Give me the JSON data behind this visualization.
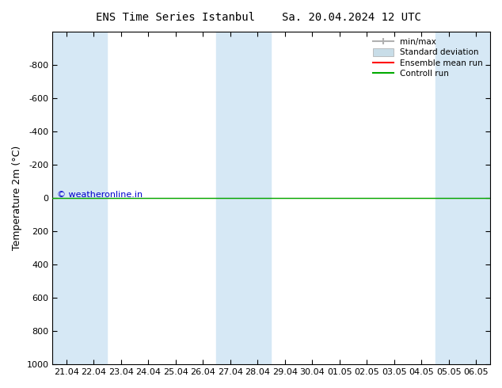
{
  "title": "ENS Time Series Istanbul",
  "title2": "Sa. 20.04.2024 12 UTC",
  "ylabel": "Temperature 2m (°C)",
  "ylim": [
    -1000,
    1000
  ],
  "yticks": [
    -800,
    -600,
    -400,
    -200,
    0,
    200,
    400,
    600,
    800,
    1000
  ],
  "xlabels": [
    "21.04",
    "22.04",
    "23.04",
    "24.04",
    "25.04",
    "26.04",
    "27.04",
    "28.04",
    "29.04",
    "30.04",
    "01.05",
    "02.05",
    "03.05",
    "04.05",
    "05.05",
    "06.05"
  ],
  "x_values": [
    0,
    1,
    2,
    3,
    4,
    5,
    6,
    7,
    8,
    9,
    10,
    11,
    12,
    13,
    14,
    15
  ],
  "shaded_columns": [
    0,
    1,
    6,
    7,
    14,
    15
  ],
  "shaded_color": "#d6e8f5",
  "green_line_y": 0,
  "green_line_color": "#00aa00",
  "red_line_color": "#ff0000",
  "background_color": "#ffffff",
  "plot_bg_color": "#ffffff",
  "copyright_text": "© weatheronline.in",
  "legend_items": [
    "min/max",
    "Standard deviation",
    "Ensemble mean run",
    "Controll run"
  ],
  "legend_colors": [
    "#b0b0b0",
    "#c8dde8",
    "#ff0000",
    "#00aa00"
  ],
  "font_size": 9,
  "title_font_size": 10
}
